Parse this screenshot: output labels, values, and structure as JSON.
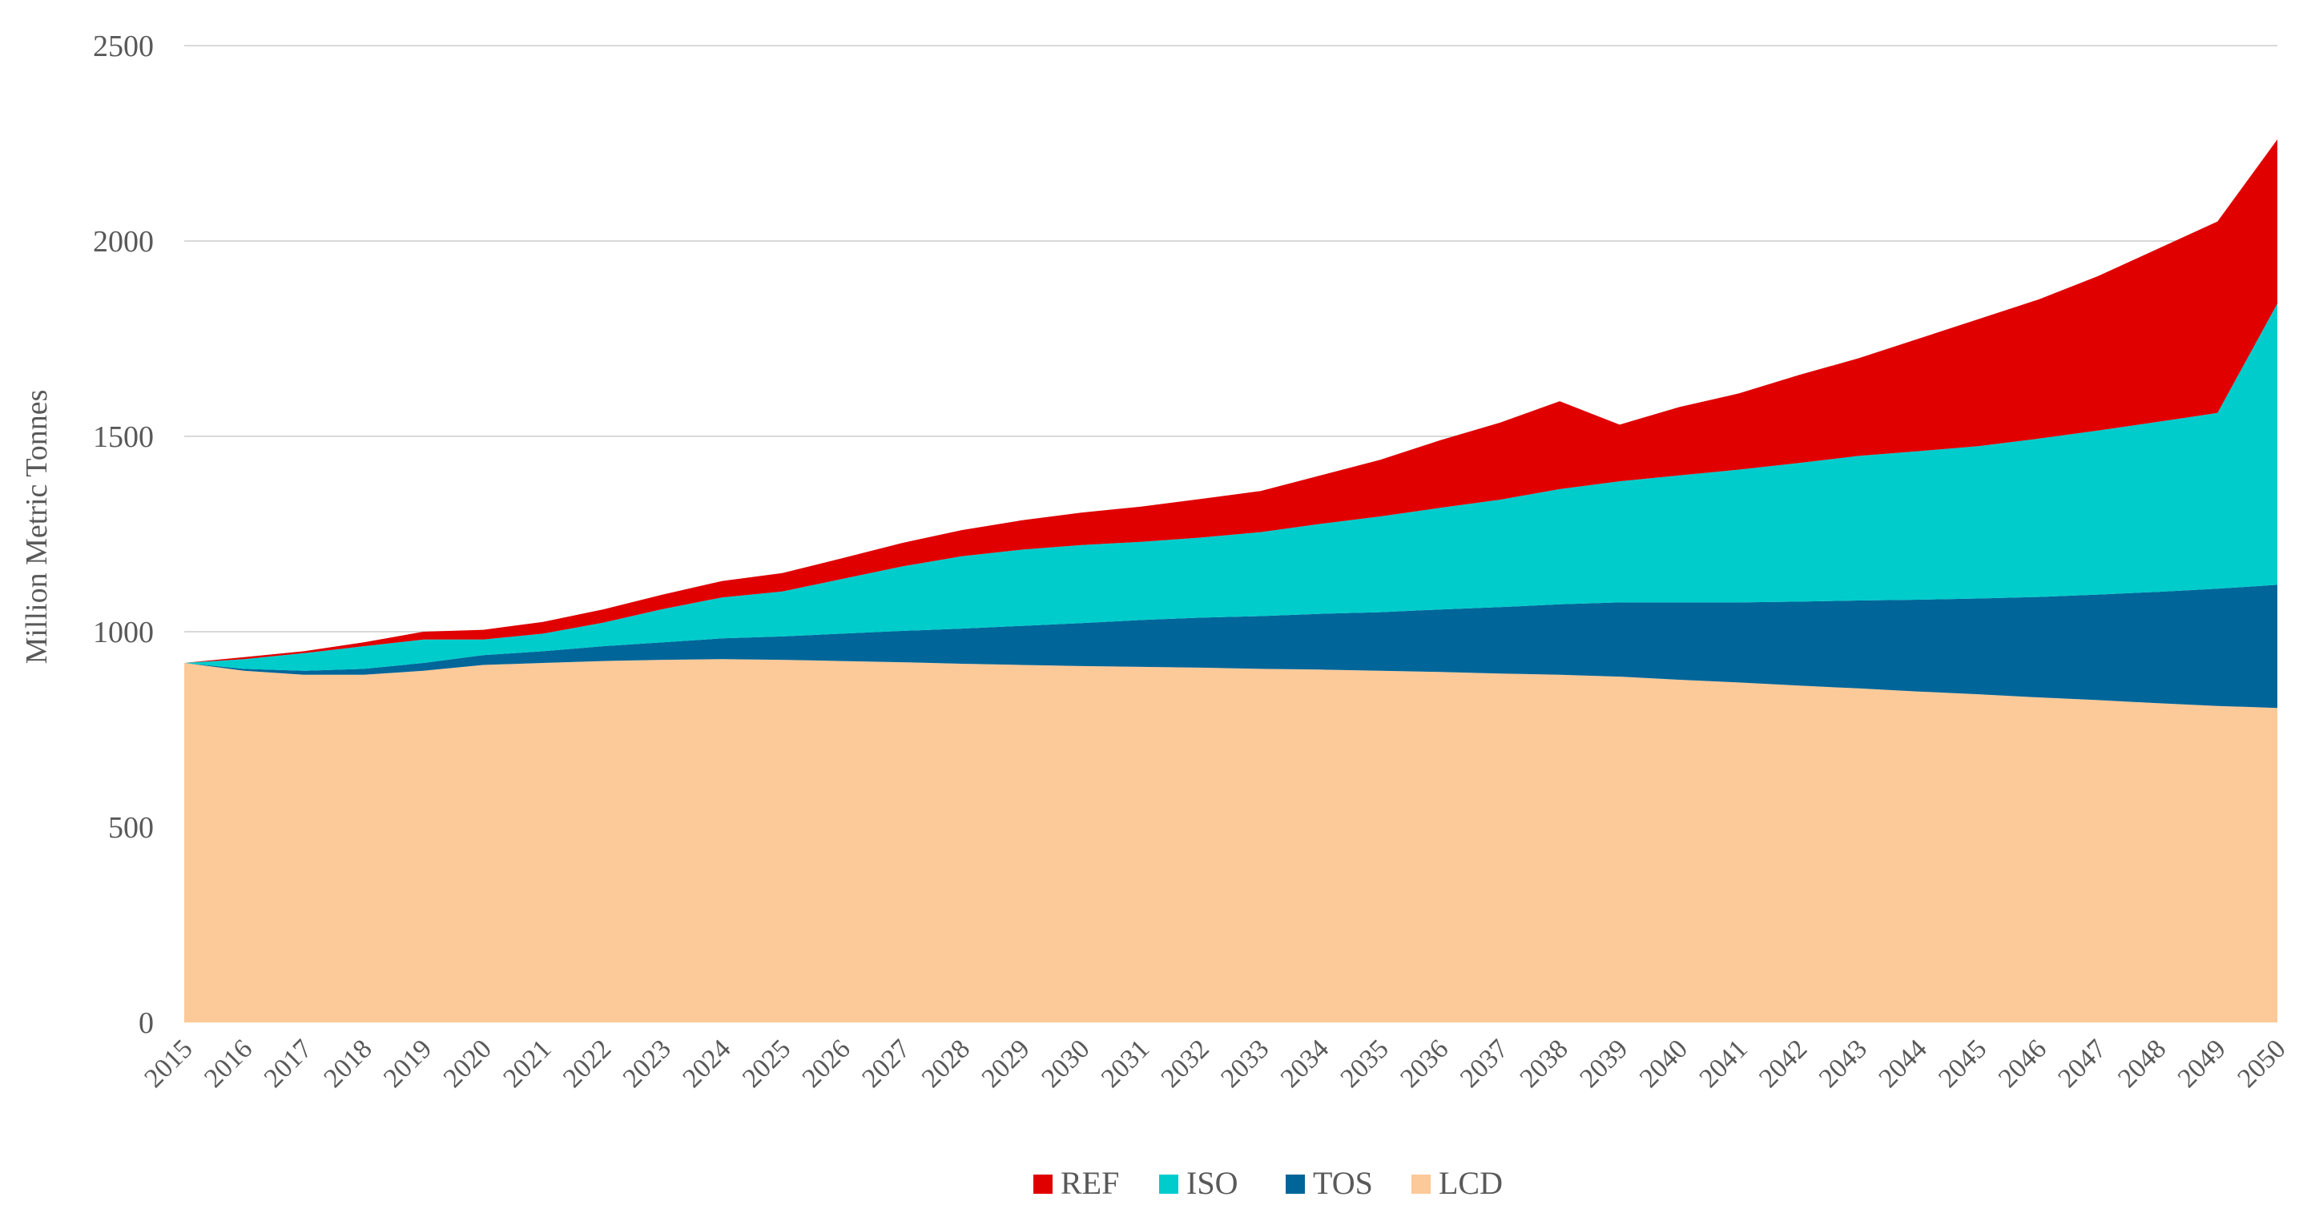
{
  "chart_data": {
    "type": "area",
    "stacked": true,
    "title": "",
    "xlabel": "",
    "ylabel": "Million Metric Tonnes",
    "ylim": [
      0,
      2500
    ],
    "yticks": [
      0,
      500,
      1000,
      1500,
      2000,
      2500
    ],
    "grid": true,
    "legend_position": "bottom-center",
    "x": [
      "2015",
      "2016",
      "2017",
      "2018",
      "2019",
      "2020",
      "2021",
      "2022",
      "2023",
      "2024",
      "2025",
      "2026",
      "2027",
      "2028",
      "2029",
      "2030",
      "2031",
      "2032",
      "2033",
      "2034",
      "2035",
      "2036",
      "2037",
      "2038",
      "2039",
      "2040",
      "2041",
      "2042",
      "2043",
      "2044",
      "2045",
      "2046",
      "2047",
      "2048",
      "2049",
      "2050"
    ],
    "series": [
      {
        "name": "LCD",
        "color": "#FCC998",
        "values": [
          920,
          900,
          890,
          890,
          900,
          915,
          920,
          925,
          928,
          930,
          928,
          925,
          922,
          918,
          915,
          912,
          910,
          908,
          905,
          903,
          900,
          897,
          893,
          890,
          885,
          877,
          870,
          862,
          855,
          847,
          840,
          832,
          825,
          817,
          810,
          805
        ]
      },
      {
        "name": "TOS",
        "color": "#006699",
        "values": [
          0,
          5,
          10,
          15,
          20,
          25,
          30,
          38,
          45,
          53,
          60,
          70,
          80,
          90,
          100,
          110,
          120,
          128,
          135,
          143,
          150,
          160,
          170,
          180,
          190,
          198,
          205,
          215,
          225,
          235,
          245,
          257,
          270,
          285,
          300,
          315
        ]
      },
      {
        "name": "ISO",
        "color": "#00CCCC",
        "values": [
          0,
          25,
          45,
          58,
          60,
          40,
          45,
          60,
          85,
          105,
          115,
          140,
          165,
          185,
          195,
          200,
          200,
          205,
          215,
          230,
          245,
          260,
          275,
          295,
          310,
          325,
          340,
          355,
          370,
          380,
          390,
          405,
          420,
          435,
          450,
          720
        ]
      },
      {
        "name": "REF",
        "color": "#E00000",
        "values": [
          0,
          5,
          5,
          10,
          20,
          25,
          30,
          34,
          37,
          42,
          47,
          53,
          60,
          67,
          75,
          83,
          90,
          99,
          105,
          124,
          145,
          173,
          197,
          225,
          145,
          175,
          195,
          225,
          250,
          288,
          325,
          356,
          395,
          443,
          490,
          420
        ]
      }
    ]
  },
  "colors": {
    "grid": "#d9d9d9",
    "text": "#595959",
    "background": "#ffffff"
  }
}
